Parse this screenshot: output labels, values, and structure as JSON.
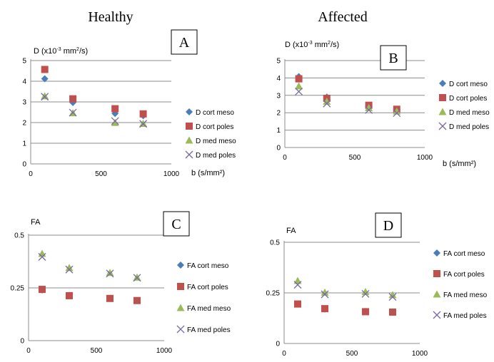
{
  "columns": {
    "left": "Healthy",
    "right": "Affected"
  },
  "colors": {
    "cort_meso": "#4a7ebb",
    "cort_poles": "#c0504d",
    "med_meso": "#9bbb59",
    "med_poles": "#7a69a6",
    "grid": "#8c8c8c"
  },
  "chart_data": [
    {
      "panel": "A",
      "type": "scatter",
      "title": "D (x10-3 mm2/s)",
      "title_main": "D (x10",
      "title_exp": "-3",
      "title_mid": " mm",
      "title_exp2": "2",
      "title_end": "/s)",
      "xlabel": "b (s/mm²)",
      "xlim": [
        0,
        1000
      ],
      "ylim": [
        0,
        5
      ],
      "xticks": [
        "0",
        "500",
        "1000"
      ],
      "yticks": [
        "0",
        "1",
        "2",
        "3",
        "4",
        "5"
      ],
      "x": [
        100,
        300,
        600,
        800
      ],
      "series": [
        {
          "name": "D cort meso",
          "marker": "diamond",
          "values": [
            4.12,
            2.97,
            2.44,
            2.33
          ]
        },
        {
          "name": "D cort poles",
          "marker": "square",
          "values": [
            4.57,
            3.15,
            2.67,
            2.42
          ]
        },
        {
          "name": "D med meso",
          "marker": "triangle",
          "values": [
            3.28,
            2.46,
            1.99,
            1.95
          ]
        },
        {
          "name": "D med poles",
          "marker": "x",
          "values": [
            3.25,
            2.48,
            2.07,
            1.94
          ]
        }
      ]
    },
    {
      "panel": "B",
      "type": "scatter",
      "title": "D (x10-3 mm2/s)",
      "title_main": "D (x10",
      "title_exp": "-3",
      "title_mid": " mm",
      "title_exp2": "2",
      "title_end": "/s)",
      "xlabel": "b (s/mm²)",
      "xlim": [
        0,
        1000
      ],
      "ylim": [
        0,
        5
      ],
      "xticks": [
        "0",
        "500",
        "1000"
      ],
      "yticks": [
        "0",
        "1",
        "2",
        "3",
        "4",
        "5"
      ],
      "x": [
        100,
        300,
        600,
        800
      ],
      "series": [
        {
          "name": "D cort meso",
          "marker": "diamond",
          "values": [
            4.08,
            2.9,
            2.43,
            2.2
          ]
        },
        {
          "name": "D cort poles",
          "marker": "square",
          "values": [
            3.95,
            2.83,
            2.43,
            2.2
          ]
        },
        {
          "name": "D med meso",
          "marker": "triangle",
          "values": [
            3.53,
            2.65,
            2.28,
            2.08
          ]
        },
        {
          "name": "D med poles",
          "marker": "x",
          "values": [
            3.22,
            2.53,
            2.16,
            1.98
          ]
        }
      ]
    },
    {
      "panel": "C",
      "type": "scatter",
      "title": "FA",
      "xlabel": "",
      "xlim": [
        0,
        1000
      ],
      "ylim": [
        0,
        0.5
      ],
      "xticks": [
        "0",
        "500",
        "1000"
      ],
      "yticks": [
        "0",
        "0.25",
        "0.5"
      ],
      "x": [
        100,
        300,
        600,
        800
      ],
      "series": [
        {
          "name": "FA cort meso",
          "marker": "diamond",
          "values": [
            0.24,
            0.215,
            0.2,
            0.19
          ]
        },
        {
          "name": "FA cort poles",
          "marker": "square",
          "values": [
            0.243,
            0.213,
            0.2,
            0.19
          ]
        },
        {
          "name": "FA med meso",
          "marker": "triangle",
          "values": [
            0.412,
            0.345,
            0.322,
            0.3
          ]
        },
        {
          "name": "FA med poles",
          "marker": "x",
          "values": [
            0.397,
            0.337,
            0.318,
            0.298
          ]
        }
      ]
    },
    {
      "panel": "D",
      "type": "scatter",
      "title": "FA",
      "xlabel": "",
      "xlim": [
        0,
        1000
      ],
      "ylim": [
        0,
        0.5
      ],
      "xticks": [
        "0",
        "500",
        "1000"
      ],
      "yticks": [
        "0",
        "0.25",
        "0.5"
      ],
      "x": [
        100,
        300,
        600,
        800
      ],
      "series": [
        {
          "name": "FA cort meso",
          "marker": "diamond",
          "values": [
            0.195,
            0.17,
            0.158,
            0.155
          ]
        },
        {
          "name": "FA cort poles",
          "marker": "square",
          "values": [
            0.195,
            0.172,
            0.157,
            0.155
          ]
        },
        {
          "name": "FA med meso",
          "marker": "triangle",
          "values": [
            0.31,
            0.252,
            0.255,
            0.24
          ]
        },
        {
          "name": "FA med poles",
          "marker": "x",
          "values": [
            0.29,
            0.243,
            0.245,
            0.23
          ]
        }
      ]
    }
  ]
}
